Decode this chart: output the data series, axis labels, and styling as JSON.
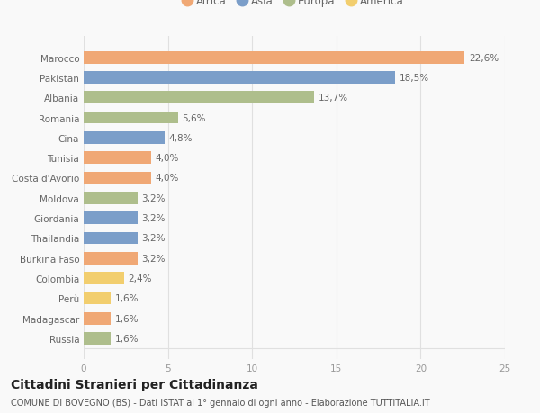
{
  "countries": [
    "Russia",
    "Madagascar",
    "Perù",
    "Colombia",
    "Burkina Faso",
    "Thailandia",
    "Giordania",
    "Moldova",
    "Costa d'Avorio",
    "Tunisia",
    "Cina",
    "Romania",
    "Albania",
    "Pakistan",
    "Marocco"
  ],
  "values": [
    1.6,
    1.6,
    1.6,
    2.4,
    3.2,
    3.2,
    3.2,
    3.2,
    4.0,
    4.0,
    4.8,
    5.6,
    13.7,
    18.5,
    22.6
  ],
  "continents": [
    "Europa",
    "Africa",
    "America",
    "America",
    "Africa",
    "Asia",
    "Asia",
    "Europa",
    "Africa",
    "Africa",
    "Asia",
    "Europa",
    "Europa",
    "Asia",
    "Africa"
  ],
  "colors": {
    "Africa": "#F0A875",
    "Asia": "#7B9EC9",
    "Europa": "#AEBE8C",
    "America": "#F2CE6E"
  },
  "legend_order": [
    "Africa",
    "Asia",
    "Europa",
    "America"
  ],
  "xlim": [
    0,
    25
  ],
  "xticks": [
    0,
    5,
    10,
    15,
    20,
    25
  ],
  "title": "Cittadini Stranieri per Cittadinanza",
  "subtitle": "COMUNE DI BOVEGNO (BS) - Dati ISTAT al 1° gennaio di ogni anno - Elaborazione TUTTITALIA.IT",
  "bg_color": "#f9f9f9",
  "grid_color": "#e0e0e0",
  "bar_height": 0.62,
  "label_fontsize": 7.5,
  "title_fontsize": 10,
  "subtitle_fontsize": 7,
  "tick_fontsize": 7.5,
  "legend_fontsize": 8.5,
  "ytick_color": "#666666",
  "xtick_color": "#999999",
  "label_color": "#666666",
  "title_color": "#222222",
  "subtitle_color": "#555555"
}
